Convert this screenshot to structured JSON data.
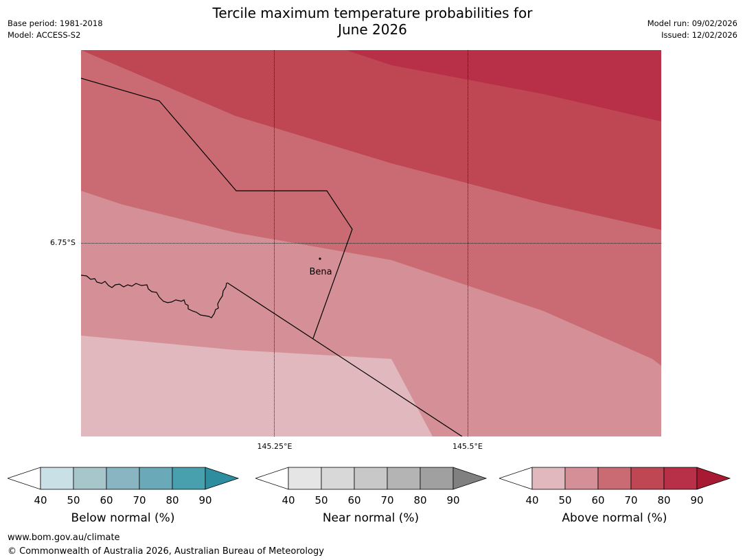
{
  "header": {
    "title_line1": "Tercile maximum temperature probabilities for",
    "title_line2": "June 2026",
    "base_period": "Base period: 1981-2018",
    "model": "Model: ACCESS-S2",
    "model_run": "Model run: 09/02/2026",
    "issued": "Issued: 12/02/2026"
  },
  "map": {
    "lat_labels": [
      "6.75°S"
    ],
    "lon_labels": [
      "145.25°E",
      "145.5°E"
    ],
    "place_label": "Bena",
    "colors": {
      "above_40_50": "#e0b8bd",
      "above_50_60": "#d59097",
      "above_60_70": "#ca6b73",
      "above_70_80": "#bf4754",
      "above_80_90": "#b83048"
    }
  },
  "legend": {
    "ticks": [
      "40",
      "50",
      "60",
      "70",
      "80",
      "90"
    ],
    "colorbars": [
      {
        "title": "Below normal (%)",
        "low_color": "#ffffff",
        "colors": [
          "#c9e1e6",
          "#a7c6cc",
          "#89b4c1",
          "#6aaab8",
          "#48a0ae"
        ],
        "high_color": "#2e8d9e"
      },
      {
        "title": "Near normal (%)",
        "low_color": "#ffffff",
        "colors": [
          "#e5e5e5",
          "#d8d8d8",
          "#c8c8c8",
          "#b4b4b4",
          "#a0a0a0"
        ],
        "high_color": "#808080"
      },
      {
        "title": "Above normal (%)",
        "low_color": "#ffffff",
        "colors": [
          "#e0b8bd",
          "#d59097",
          "#ca6b73",
          "#bf4754",
          "#b83048"
        ],
        "high_color": "#a81a32"
      }
    ]
  },
  "footer": {
    "url": "www.bom.gov.au/climate",
    "copyright": "© Commonwealth of Australia 2026, Australian Bureau of Meteorology"
  }
}
